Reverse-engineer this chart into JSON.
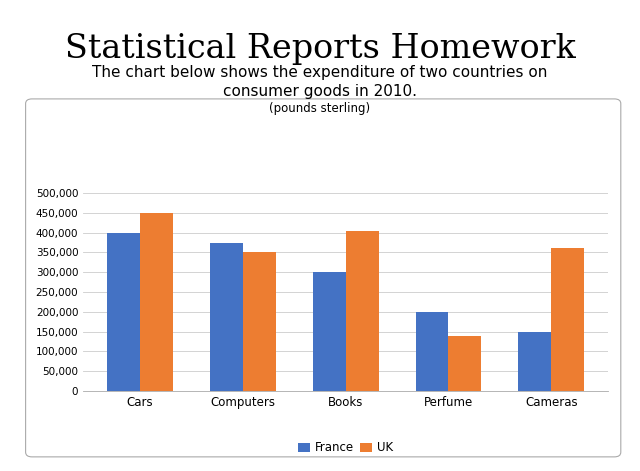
{
  "title_main": "Statistical Reports Homework",
  "title_chart_line1": "The chart below shows the expenditure of two countries on",
  "title_chart_line2": "consumer goods in 2010.",
  "subtitle_chart": "(pounds sterling)",
  "categories": [
    "Cars",
    "Computers",
    "Books",
    "Perfume",
    "Cameras"
  ],
  "france": [
    400000,
    375000,
    300000,
    200000,
    150000
  ],
  "uk": [
    450000,
    350000,
    405000,
    140000,
    360000
  ],
  "france_color": "#4472C4",
  "uk_color": "#ED7D31",
  "legend_labels": [
    "France",
    "UK"
  ],
  "ylim": [
    0,
    500000
  ],
  "yticks": [
    0,
    50000,
    100000,
    150000,
    200000,
    250000,
    300000,
    350000,
    400000,
    450000,
    500000
  ],
  "fig_background": "#FFFFFF",
  "box_background": "#FFFFFF",
  "grid_color": "#CCCCCC",
  "title_fontsize": 24,
  "chart_title_fontsize": 11,
  "subtitle_fontsize": 8.5,
  "tick_fontsize": 7.5,
  "xtick_fontsize": 8.5,
  "legend_fontsize": 8.5,
  "bar_width": 0.32
}
